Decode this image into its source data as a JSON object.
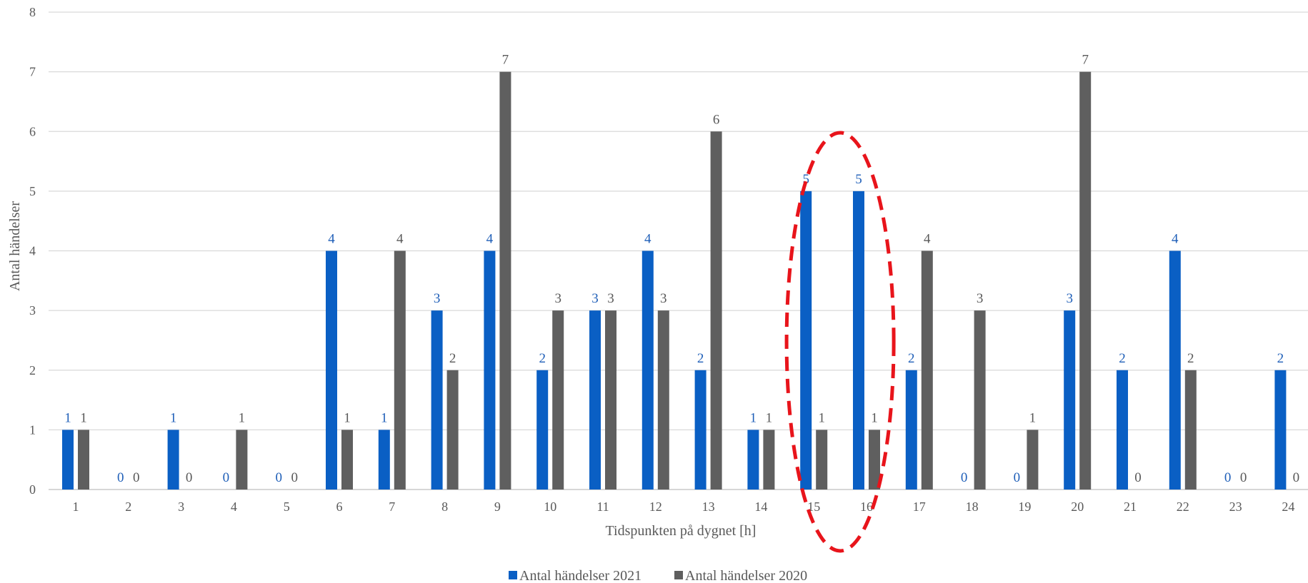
{
  "chart_data": {
    "type": "bar",
    "title": "",
    "xlabel": "Tidspunkten på dygnet [h]",
    "ylabel": "Antal händelser",
    "ylim": [
      0,
      8
    ],
    "yticks": [
      0,
      1,
      2,
      3,
      4,
      5,
      6,
      7,
      8
    ],
    "grid": true,
    "legend_position": "bottom-center",
    "categories": [
      "1",
      "2",
      "3",
      "4",
      "5",
      "6",
      "7",
      "8",
      "9",
      "10",
      "11",
      "12",
      "13",
      "14",
      "15",
      "16",
      "17",
      "18",
      "19",
      "20",
      "21",
      "22",
      "23",
      "24"
    ],
    "series": [
      {
        "name": "Antal händelser 2021",
        "color": "#0a5fc4",
        "label_color": "#1f5fb8",
        "values": [
          1,
          0,
          1,
          0,
          0,
          4,
          1,
          3,
          4,
          2,
          3,
          4,
          2,
          1,
          5,
          5,
          2,
          0,
          0,
          3,
          2,
          4,
          0,
          2
        ]
      },
      {
        "name": "Antal händelser 2020",
        "color": "#5f5f5f",
        "label_color": "#595959",
        "values": [
          1,
          0,
          0,
          1,
          0,
          1,
          4,
          2,
          7,
          3,
          3,
          3,
          6,
          1,
          1,
          1,
          4,
          3,
          1,
          7,
          0,
          2,
          0,
          0
        ]
      }
    ],
    "annotations": [
      {
        "type": "dashed-ellipse",
        "color": "#e8141b",
        "around_categories": [
          "15",
          "16"
        ]
      }
    ]
  }
}
